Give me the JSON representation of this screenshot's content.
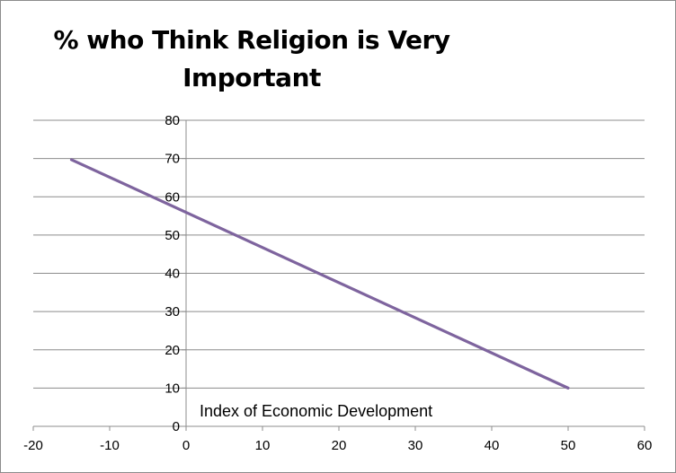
{
  "chart_data": {
    "type": "line",
    "title": "% who Think Religion is Very Important",
    "title_lines": [
      "% who Think Religion is Very",
      "Important"
    ],
    "xlabel": "Index of Economic Development",
    "ylabel": "",
    "xlim": [
      -20,
      60
    ],
    "ylim": [
      0,
      80
    ],
    "x_ticks": [
      -20,
      -10,
      0,
      10,
      20,
      30,
      40,
      50,
      60
    ],
    "y_ticks": [
      0,
      10,
      20,
      30,
      40,
      50,
      60,
      70,
      80
    ],
    "grid": true,
    "series": [
      {
        "name": "% who Think Religion is Very Important",
        "color": "#7e649e",
        "x": [
          -15,
          50
        ],
        "y": [
          69.7,
          10
        ]
      }
    ]
  }
}
